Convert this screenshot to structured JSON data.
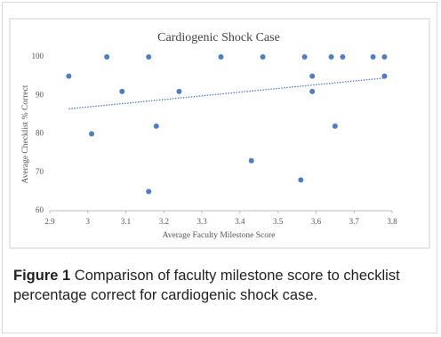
{
  "chart_data": {
    "type": "scatter",
    "title": "Cardiogenic Shock Case",
    "x_label": "Average Faculty Milestone Score",
    "y_label": "Average Checklist % Correct",
    "x": [
      2.95,
      3.01,
      3.05,
      3.09,
      3.16,
      3.16,
      3.18,
      3.24,
      3.35,
      3.43,
      3.46,
      3.56,
      3.57,
      3.59,
      3.59,
      3.64,
      3.65,
      3.67,
      3.75,
      3.78,
      3.78
    ],
    "values": [
      95,
      80,
      100,
      91,
      100,
      65,
      82,
      91,
      100,
      73,
      100,
      68,
      100,
      95,
      91,
      100,
      82,
      100,
      100,
      100,
      95
    ],
    "color": "#4f7cc4",
    "trendline": {
      "x": [
        2.95,
        3.78
      ],
      "y": [
        86.5,
        94.5
      ],
      "color": "#4f7cc4"
    },
    "xlim": [
      2.9,
      3.8
    ],
    "xticks": [
      2.9,
      3,
      3.1,
      3.2,
      3.3,
      3.4,
      3.5,
      3.6,
      3.7,
      3.8
    ],
    "ylim": [
      60,
      100
    ],
    "yticks": [
      60,
      70,
      80,
      90,
      100
    ],
    "grid": false
  },
  "caption": {
    "label": "Figure 1",
    "text": "Comparison of faculty milestone score to checklist percentage correct for cardiogenic shock case."
  }
}
